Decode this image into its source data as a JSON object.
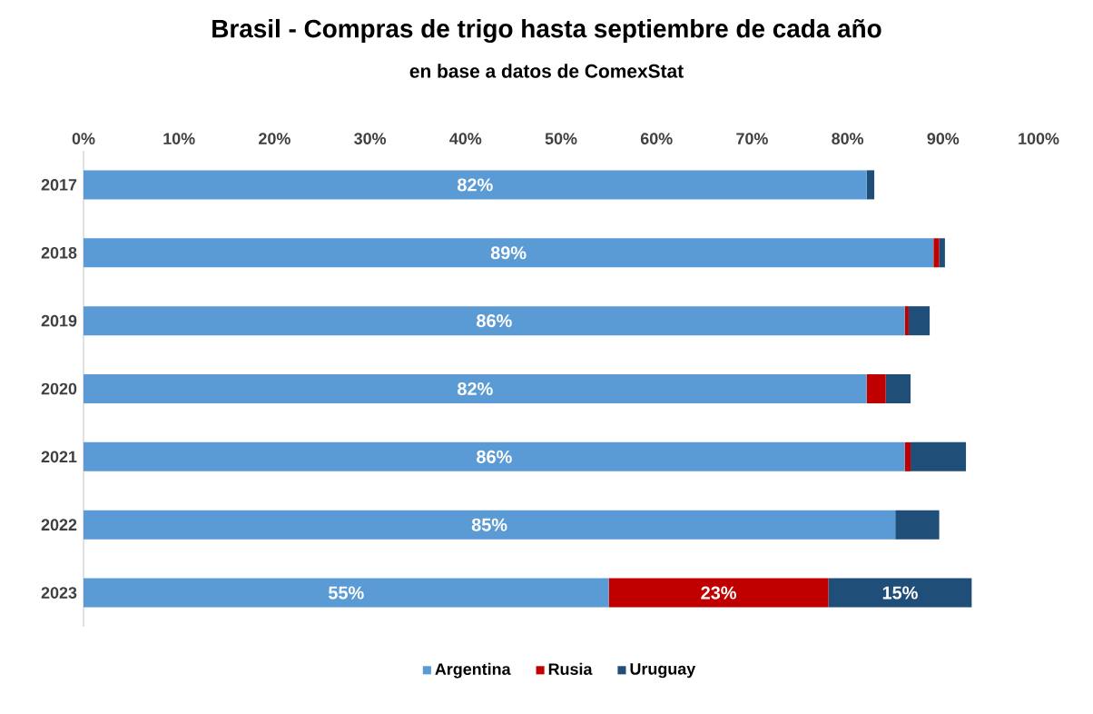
{
  "chart_data": {
    "type": "bar",
    "orientation": "horizontal",
    "stacked": true,
    "title": "Brasil - Compras de trigo hasta septiembre de cada año",
    "subtitle": "en base a datos de ComexStat",
    "categories": [
      "2017",
      "2018",
      "2019",
      "2020",
      "2021",
      "2022",
      "2023"
    ],
    "series": [
      {
        "name": "Argentina",
        "color": "#5b9bd5",
        "values": [
          82,
          89,
          86,
          82,
          86,
          85,
          55
        ],
        "value_labels": [
          "82%",
          "89%",
          "86%",
          "82%",
          "86%",
          "85%",
          "55%"
        ]
      },
      {
        "name": "Rusia",
        "color": "#c00000",
        "values": [
          0,
          0.6,
          0.4,
          2.0,
          0.6,
          0,
          23
        ],
        "value_labels": [
          null,
          null,
          null,
          null,
          null,
          null,
          "23%"
        ]
      },
      {
        "name": "Uruguay",
        "color": "#1f4e79",
        "values": [
          0.8,
          0.6,
          2.2,
          2.6,
          5.8,
          4.6,
          15
        ],
        "value_labels": [
          null,
          null,
          null,
          null,
          null,
          null,
          "15%"
        ]
      }
    ],
    "xlim": [
      0,
      100
    ],
    "xticks": [
      {
        "value": 0,
        "label": "0%"
      },
      {
        "value": 10,
        "label": "10%"
      },
      {
        "value": 20,
        "label": "20%"
      },
      {
        "value": 30,
        "label": "30%"
      },
      {
        "value": 40,
        "label": "40%"
      },
      {
        "value": 50,
        "label": "50%"
      },
      {
        "value": 60,
        "label": "60%"
      },
      {
        "value": 70,
        "label": "70%"
      },
      {
        "value": 80,
        "label": "80%"
      },
      {
        "value": 90,
        "label": "90%"
      },
      {
        "value": 100,
        "label": "100%"
      }
    ],
    "legend": "bottom"
  }
}
